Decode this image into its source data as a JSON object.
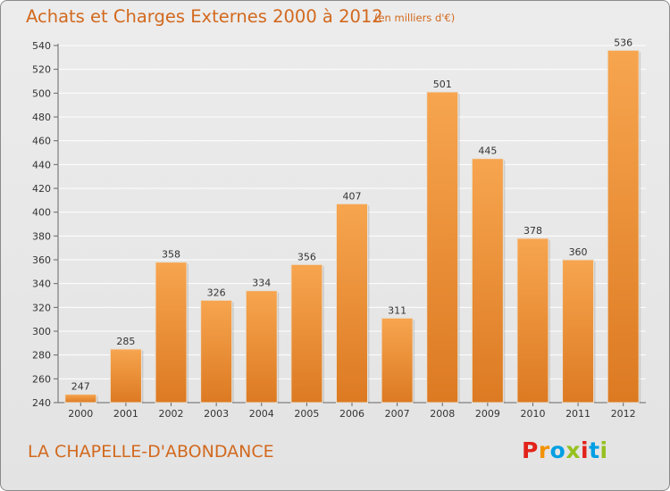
{
  "title": "Achats et Charges Externes 2000 à 2012",
  "subtitle": "(en milliers d'€)",
  "place": "LA CHAPELLE-D'ABONDANCE",
  "logo": {
    "letters": [
      {
        "ch": "P",
        "color": "#e2231a"
      },
      {
        "ch": "r",
        "color": "#f39200"
      },
      {
        "ch": "o",
        "color": "#009fe3"
      },
      {
        "ch": "x",
        "color": "#95c11f"
      },
      {
        "ch": "i",
        "color": "#e2231a"
      },
      {
        "ch": "t",
        "color": "#009fe3"
      },
      {
        "ch": "i",
        "color": "#95c11f"
      }
    ]
  },
  "colors": {
    "bar_light": "#f7a54f",
    "bar_dark": "#dc7a22",
    "title": "#d2691e",
    "grid": "#ffffff"
  },
  "chart_data": {
    "type": "bar",
    "title": "Achats et Charges Externes 2000 à 2012",
    "subtitle": "(en milliers d'€)",
    "categories": [
      "2000",
      "2001",
      "2002",
      "2003",
      "2004",
      "2005",
      "2006",
      "2007",
      "2008",
      "2009",
      "2010",
      "2011",
      "2012"
    ],
    "values": [
      247,
      285,
      358,
      326,
      334,
      356,
      407,
      311,
      501,
      445,
      378,
      360,
      536
    ],
    "ylim": [
      240,
      540
    ],
    "yticks": [
      240,
      260,
      280,
      300,
      320,
      340,
      360,
      380,
      400,
      420,
      440,
      460,
      480,
      500,
      520,
      540
    ],
    "grid": true,
    "xlabel": "",
    "ylabel": ""
  }
}
